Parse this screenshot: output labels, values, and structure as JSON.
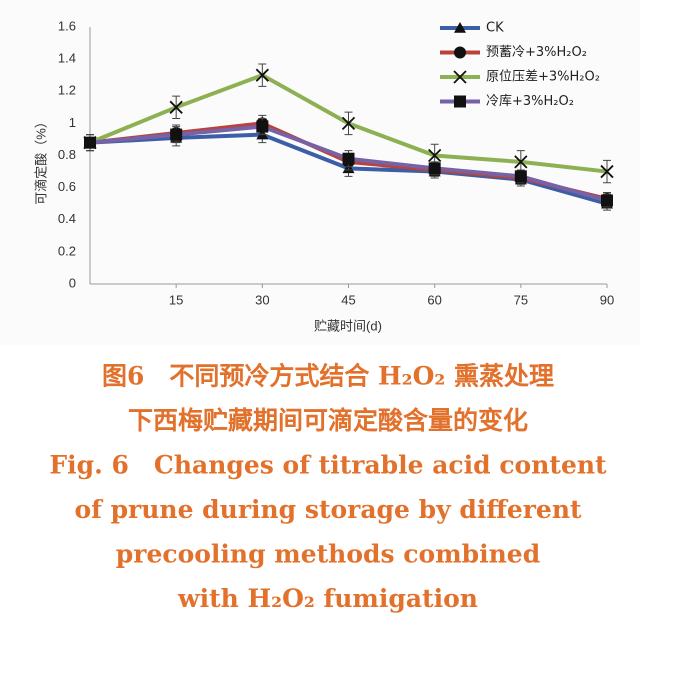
{
  "chart_data": {
    "type": "line",
    "y_label": "可滴定酸（%）",
    "x_label": "贮藏时间(d)",
    "x": [
      0,
      15,
      30,
      45,
      60,
      75,
      90
    ],
    "xlim": [
      0,
      90
    ],
    "xticks": [
      15,
      30,
      45,
      60,
      75,
      90
    ],
    "ylim": [
      0,
      1.6
    ],
    "yticks": [
      0,
      0.2,
      0.4,
      0.6,
      0.8,
      1,
      1.2,
      1.4,
      1.6
    ],
    "grid": false,
    "legend": "top-right",
    "series": [
      {
        "name": "CK",
        "color": "#3b5ea6",
        "marker": "triangle",
        "values": [
          0.88,
          0.91,
          0.93,
          0.72,
          0.7,
          0.65,
          0.5
        ],
        "errors": [
          0.05,
          0.05,
          0.05,
          0.05,
          0.04,
          0.04,
          0.04
        ]
      },
      {
        "name": "预蓄冷+3%H₂O₂",
        "color": "#b8423c",
        "marker": "circle",
        "values": [
          0.88,
          0.94,
          1.0,
          0.76,
          0.71,
          0.66,
          0.53
        ],
        "errors": [
          0.05,
          0.05,
          0.05,
          0.05,
          0.04,
          0.04,
          0.04
        ]
      },
      {
        "name": "原位压差+3%H₂O₂",
        "color": "#8db053",
        "marker": "x",
        "values": [
          0.88,
          1.1,
          1.3,
          1.0,
          0.8,
          0.76,
          0.7
        ],
        "errors": [
          0.05,
          0.07,
          0.07,
          0.07,
          0.07,
          0.07,
          0.07
        ]
      },
      {
        "name": "冷库+3%H₂O₂",
        "color": "#7862a6",
        "marker": "square",
        "values": [
          0.88,
          0.93,
          0.98,
          0.78,
          0.72,
          0.67,
          0.52
        ],
        "errors": [
          0.05,
          0.05,
          0.05,
          0.05,
          0.04,
          0.04,
          0.04
        ]
      }
    ]
  },
  "caption": {
    "lines": [
      "图6　不同预冷方式结合 H₂O₂ 熏蒸处理",
      "下西梅贮藏期间可滴定酸含量的变化",
      "Fig. 6　Changes of titrable acid content",
      "of prune during storage by different",
      "precooling methods combined",
      "with H₂O₂ fumigation"
    ]
  }
}
